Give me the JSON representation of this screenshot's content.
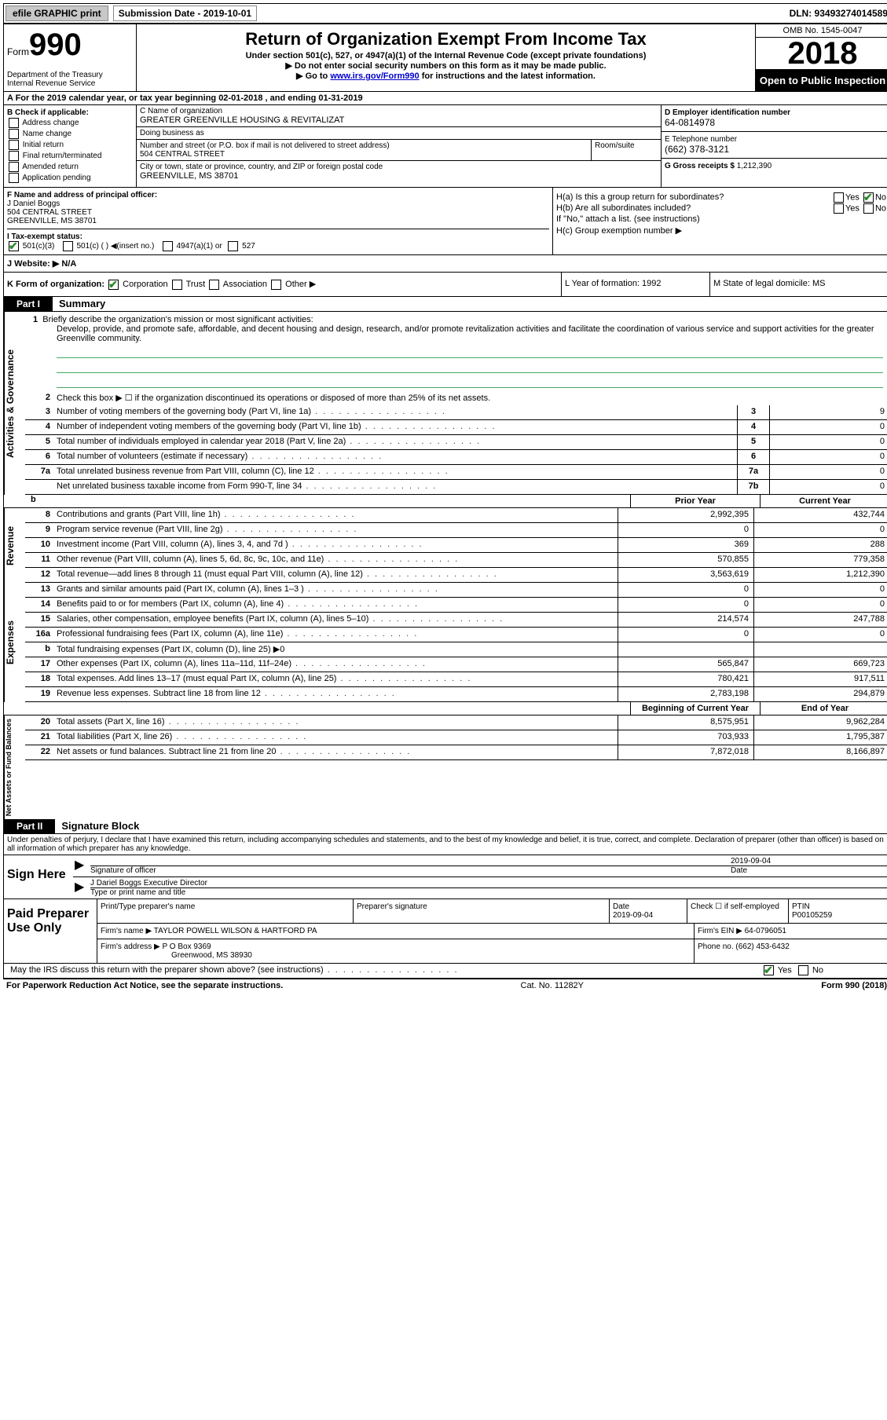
{
  "topbar": {
    "efile": "efile GRAPHIC print",
    "sub_label": "Submission Date - 2019-10-01",
    "dln": "DLN: 93493274014589"
  },
  "header": {
    "form_prefix": "Form",
    "form_num": "990",
    "dept": "Department of the Treasury",
    "irs": "Internal Revenue Service",
    "title": "Return of Organization Exempt From Income Tax",
    "sub1": "Under section 501(c), 527, or 4947(a)(1) of the Internal Revenue Code (except private foundations)",
    "sub2": "▶ Do not enter social security numbers on this form as it may be made public.",
    "sub3_pre": "▶ Go to ",
    "sub3_link": "www.irs.gov/Form990",
    "sub3_post": " for instructions and the latest information.",
    "omb": "OMB No. 1545-0047",
    "year": "2018",
    "public": "Open to Public Inspection"
  },
  "rowA": "A For the 2019 calendar year, or tax year beginning 02-01-2018   , and ending 01-31-2019",
  "boxB": {
    "title": "B Check if applicable:",
    "opts": [
      "Address change",
      "Name change",
      "Initial return",
      "Final return/terminated",
      "Amended return",
      "Application pending"
    ]
  },
  "boxC": {
    "name_label": "C Name of organization",
    "name": "GREATER GREENVILLE HOUSING & REVITALIZAT",
    "dba_label": "Doing business as",
    "dba": "",
    "addr_label": "Number and street (or P.O. box if mail is not delivered to street address)",
    "addr": "504 CENTRAL STREET",
    "room_label": "Room/suite",
    "city_label": "City or town, state or province, country, and ZIP or foreign postal code",
    "city": "GREENVILLE, MS  38701"
  },
  "boxD": {
    "ein_label": "D Employer identification number",
    "ein": "64-0814978",
    "phone_label": "E Telephone number",
    "phone": "(662) 378-3121",
    "gross_label": "G Gross receipts $",
    "gross": "1,212,390"
  },
  "boxF": {
    "label": "F  Name and address of principal officer:",
    "name": "J Daniel Boggs",
    "addr1": "504 CENTRAL STREET",
    "addr2": "GREENVILLE, MS  38701"
  },
  "boxH": {
    "a_label": "H(a)  Is this a group return for subordinates?",
    "a_yes": "Yes",
    "a_no": "No",
    "b_label": "H(b)  Are all subordinates included?",
    "b_yes": "Yes",
    "b_no": "No",
    "b_note": "If \"No,\" attach a list. (see instructions)",
    "c_label": "H(c)  Group exemption number ▶"
  },
  "taxI": {
    "label": "I  Tax-exempt status:",
    "o1": "501(c)(3)",
    "o2": "501(c) (  ) ◀(insert no.)",
    "o3": "4947(a)(1) or",
    "o4": "527"
  },
  "rowJ": {
    "label": "J  Website: ▶",
    "val": "N/A"
  },
  "rowK": {
    "label": "K Form of organization:",
    "o1": "Corporation",
    "o2": "Trust",
    "o3": "Association",
    "o4": "Other ▶",
    "L": "L Year of formation: 1992",
    "M": "M State of legal domicile: MS"
  },
  "part1": {
    "tab": "Part I",
    "title": "Summary"
  },
  "vlabels": {
    "ag": "Activities & Governance",
    "rev": "Revenue",
    "exp": "Expenses",
    "net": "Net Assets or Fund Balances"
  },
  "mission": {
    "num": "1",
    "label": "Briefly describe the organization's mission or most significant activities:",
    "text": "Develop, provide, and promote safe, affordable, and decent housing and design, research, and/or promote revitalization activities and facilitate the coordination of various service and support activities for the greater Greenville community."
  },
  "line2txt": "Check this box ▶ ☐  if the organization discontinued its operations or disposed of more than 25% of its net assets.",
  "lines_ag": [
    {
      "n": "3",
      "d": "Number of voting members of the governing body (Part VI, line 1a)",
      "cell": "3",
      "v": "9"
    },
    {
      "n": "4",
      "d": "Number of independent voting members of the governing body (Part VI, line 1b)",
      "cell": "4",
      "v": "0"
    },
    {
      "n": "5",
      "d": "Total number of individuals employed in calendar year 2018 (Part V, line 2a)",
      "cell": "5",
      "v": "0"
    },
    {
      "n": "6",
      "d": "Total number of volunteers (estimate if necessary)",
      "cell": "6",
      "v": "0"
    },
    {
      "n": "7a",
      "d": "Total unrelated business revenue from Part VIII, column (C), line 12",
      "cell": "7a",
      "v": "0"
    },
    {
      "n": "",
      "d": "Net unrelated business taxable income from Form 990-T, line 34",
      "cell": "7b",
      "v": "0"
    }
  ],
  "hdr2": {
    "c1": "Prior Year",
    "c2": "Current Year"
  },
  "lines_rev": [
    {
      "n": "8",
      "d": "Contributions and grants (Part VIII, line 1h)",
      "c1": "2,992,395",
      "c2": "432,744"
    },
    {
      "n": "9",
      "d": "Program service revenue (Part VIII, line 2g)",
      "c1": "0",
      "c2": "0"
    },
    {
      "n": "10",
      "d": "Investment income (Part VIII, column (A), lines 3, 4, and 7d )",
      "c1": "369",
      "c2": "288"
    },
    {
      "n": "11",
      "d": "Other revenue (Part VIII, column (A), lines 5, 6d, 8c, 9c, 10c, and 11e)",
      "c1": "570,855",
      "c2": "779,358"
    },
    {
      "n": "12",
      "d": "Total revenue—add lines 8 through 11 (must equal Part VIII, column (A), line 12)",
      "c1": "3,563,619",
      "c2": "1,212,390"
    }
  ],
  "lines_exp": [
    {
      "n": "13",
      "d": "Grants and similar amounts paid (Part IX, column (A), lines 1–3 )",
      "c1": "0",
      "c2": "0"
    },
    {
      "n": "14",
      "d": "Benefits paid to or for members (Part IX, column (A), line 4)",
      "c1": "0",
      "c2": "0"
    },
    {
      "n": "15",
      "d": "Salaries, other compensation, employee benefits (Part IX, column (A), lines 5–10)",
      "c1": "214,574",
      "c2": "247,788"
    },
    {
      "n": "16a",
      "d": "Professional fundraising fees (Part IX, column (A), line 11e)",
      "c1": "0",
      "c2": "0"
    },
    {
      "n": "b",
      "d": "Total fundraising expenses (Part IX, column (D), line 25) ▶0",
      "c1": "",
      "c2": "",
      "grey": true
    },
    {
      "n": "17",
      "d": "Other expenses (Part IX, column (A), lines 11a–11d, 11f–24e)",
      "c1": "565,847",
      "c2": "669,723"
    },
    {
      "n": "18",
      "d": "Total expenses. Add lines 13–17 (must equal Part IX, column (A), line 25)",
      "c1": "780,421",
      "c2": "917,511"
    },
    {
      "n": "19",
      "d": "Revenue less expenses. Subtract line 18 from line 12",
      "c1": "2,783,198",
      "c2": "294,879"
    }
  ],
  "hdr3": {
    "c1": "Beginning of Current Year",
    "c2": "End of Year"
  },
  "lines_net": [
    {
      "n": "20",
      "d": "Total assets (Part X, line 16)",
      "c1": "8,575,951",
      "c2": "9,962,284"
    },
    {
      "n": "21",
      "d": "Total liabilities (Part X, line 26)",
      "c1": "703,933",
      "c2": "1,795,387"
    },
    {
      "n": "22",
      "d": "Net assets or fund balances. Subtract line 21 from line 20",
      "c1": "7,872,018",
      "c2": "8,166,897"
    }
  ],
  "part2": {
    "tab": "Part II",
    "title": "Signature Block"
  },
  "penalty": "Under penalties of perjury, I declare that I have examined this return, including accompanying schedules and statements, and to the best of my knowledge and belief, it is true, correct, and complete. Declaration of preparer (other than officer) is based on all information of which preparer has any knowledge.",
  "sign": {
    "here": "Sign Here",
    "sig_label": "Signature of officer",
    "date_label": "Date",
    "date": "2019-09-04",
    "name": "J Dariel Boggs  Executive Director",
    "name_label": "Type or print name and title"
  },
  "prep": {
    "title": "Paid Preparer Use Only",
    "h1": "Print/Type preparer's name",
    "h2": "Preparer's signature",
    "h3": "Date",
    "h3v": "2019-09-04",
    "h4": "Check ☐ if self-employed",
    "h5": "PTIN",
    "h5v": "P00105259",
    "firm_label": "Firm's name    ▶",
    "firm": "TAYLOR POWELL WILSON & HARTFORD PA",
    "ein_label": "Firm's EIN ▶",
    "ein": "64-0796051",
    "addr_label": "Firm's address ▶",
    "addr1": "P O Box 9369",
    "addr2": "Greenwood, MS  38930",
    "phone_label": "Phone no.",
    "phone": "(662) 453-6432"
  },
  "irs_discuss": "May the IRS discuss this return with the preparer shown above? (see instructions)",
  "footer": {
    "left": "For Paperwork Reduction Act Notice, see the separate instructions.",
    "mid": "Cat. No. 11282Y",
    "right": "Form 990 (2018)"
  }
}
